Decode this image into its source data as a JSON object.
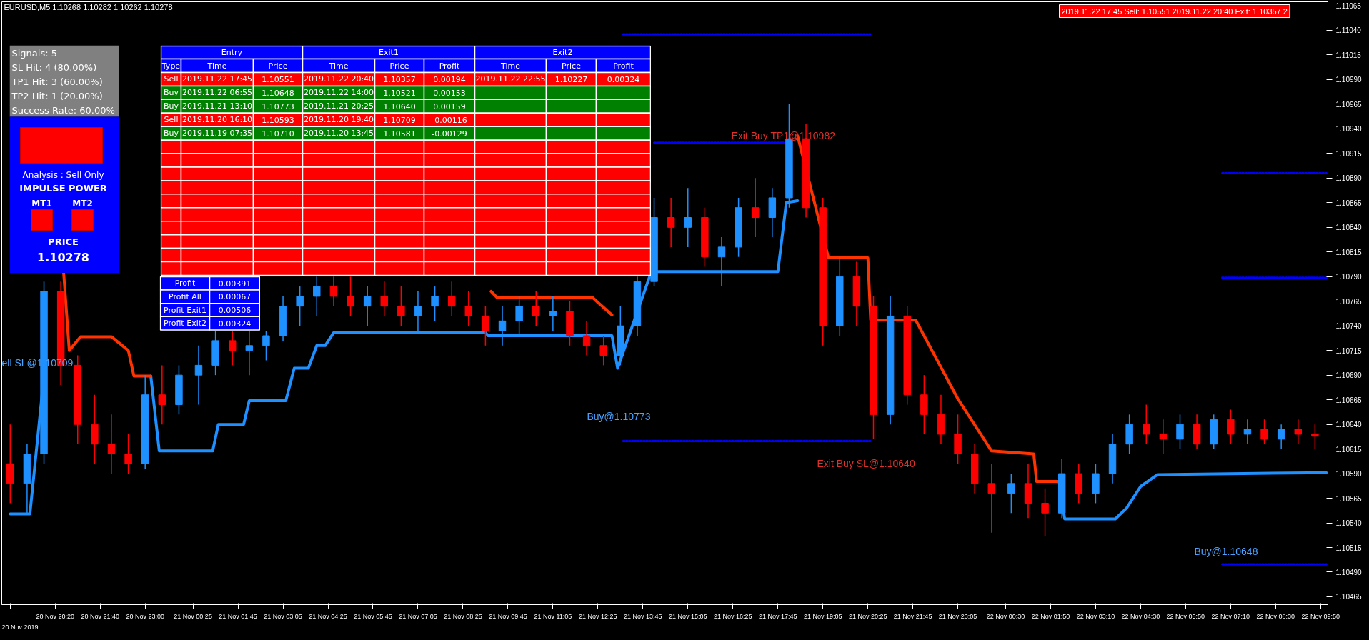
{
  "chart_data": [
    {
      "type": "candlestick",
      "title": "EURUSD,M5  1.10268 1.10282 1.10262 1.10278",
      "x": [
        "2019-11-20T19:00",
        "2019-11-20T19:30",
        "2019-11-20T20:00",
        "2019-11-20T20:30",
        "2019-11-20T21:00",
        "2019-11-20T21:30",
        "2019-11-20T22:00",
        "2019-11-20T22:30",
        "2019-11-20T23:00",
        "2019-11-20T23:30",
        "2019-11-21T00:00",
        "2019-11-21T00:35",
        "2019-11-21T01:05",
        "2019-11-21T01:35",
        "2019-11-21T02:05",
        "2019-11-21T02:35",
        "2019-11-21T03:05",
        "2019-11-21T03:35",
        "2019-11-21T04:05",
        "2019-11-21T04:35",
        "2019-11-21T05:05",
        "2019-11-21T05:35",
        "2019-11-21T06:05",
        "2019-11-21T06:35",
        "2019-11-21T07:05",
        "2019-11-21T07:35",
        "2019-11-21T08:05",
        "2019-11-21T08:35",
        "2019-11-21T09:05",
        "2019-11-21T09:35",
        "2019-11-21T10:05",
        "2019-11-21T10:35",
        "2019-11-21T11:05",
        "2019-11-21T11:35",
        "2019-11-21T12:05",
        "2019-11-21T12:35",
        "2019-11-21T13:05",
        "2019-11-21T13:35",
        "2019-11-21T14:05",
        "2019-11-21T14:35",
        "2019-11-21T15:05",
        "2019-11-21T15:35",
        "2019-11-21T16:05",
        "2019-11-21T16:35",
        "2019-11-21T17:05",
        "2019-11-21T17:35",
        "2019-11-21T18:05",
        "2019-11-21T18:35",
        "2019-11-21T19:05",
        "2019-11-21T19:35",
        "2019-11-21T20:05",
        "2019-11-21T20:35",
        "2019-11-21T21:05",
        "2019-11-21T21:35",
        "2019-11-21T22:05",
        "2019-11-21T22:35",
        "2019-11-21T23:05",
        "2019-11-21T23:35",
        "2019-11-22T00:05",
        "2019-11-22T00:40",
        "2019-11-22T01:10",
        "2019-11-22T01:40",
        "2019-11-22T02:10",
        "2019-11-22T02:40",
        "2019-11-22T03:10",
        "2019-11-22T03:40",
        "2019-11-22T04:10",
        "2019-11-22T04:40",
        "2019-11-22T05:10",
        "2019-11-22T05:40",
        "2019-11-22T06:10",
        "2019-11-22T06:40",
        "2019-11-22T07:10",
        "2019-11-22T07:40",
        "2019-11-22T08:10",
        "2019-11-22T08:40",
        "2019-11-22T09:10",
        "2019-11-22T09:40"
      ],
      "colors": [
        "#ff0000",
        "#1e90ff",
        "#1e90ff",
        "#ff0000",
        "#ff0000",
        "#ff0000",
        "#ff0000",
        "#ff0000",
        "#1e90ff",
        "#ff0000",
        "#1e90ff",
        "#1e90ff",
        "#1e90ff",
        "#ff0000",
        "#1e90ff",
        "#1e90ff",
        "#1e90ff",
        "#1e90ff",
        "#1e90ff",
        "#ff0000",
        "#ff0000",
        "#1e90ff",
        "#ff0000",
        "#ff0000",
        "#1e90ff",
        "#1e90ff",
        "#ff0000",
        "#ff0000",
        "#ff0000",
        "#1e90ff",
        "#1e90ff",
        "#ff0000",
        "#1e90ff",
        "#ff0000",
        "#ff0000",
        "#ff0000",
        "#1e90ff",
        "#1e90ff",
        "#1e90ff",
        "#ff0000",
        "#1e90ff",
        "#ff0000",
        "#1e90ff",
        "#1e90ff",
        "#ff0000",
        "#1e90ff",
        "#1e90ff",
        "#ff0000",
        "#ff0000",
        "#1e90ff",
        "#ff0000",
        "#ff0000",
        "#1e90ff",
        "#ff0000",
        "#ff0000",
        "#ff0000",
        "#ff0000",
        "#ff0000",
        "#ff0000",
        "#1e90ff",
        "#ff0000",
        "#ff0000",
        "#1e90ff",
        "#ff0000",
        "#1e90ff",
        "#1e90ff",
        "#1e90ff",
        "#ff0000",
        "#ff0000",
        "#1e90ff",
        "#ff0000",
        "#1e90ff",
        "#ff0000",
        "#1e90ff",
        "#ff0000",
        "#1e90ff",
        "#ff0000",
        "#ff0000"
      ],
      "ohlc": [
        [
          1.106,
          1.1064,
          1.1056,
          1.1058
        ],
        [
          1.1058,
          1.1062,
          1.1055,
          1.1061
        ],
        [
          1.1061,
          1.10785,
          1.106,
          1.10775
        ],
        [
          1.10775,
          1.10785,
          1.1068,
          1.107
        ],
        [
          1.107,
          1.1071,
          1.1062,
          1.1064
        ],
        [
          1.1064,
          1.1067,
          1.106,
          1.1062
        ],
        [
          1.1062,
          1.1065,
          1.1059,
          1.1061
        ],
        [
          1.1061,
          1.1063,
          1.1059,
          1.106
        ],
        [
          1.106,
          1.1069,
          1.10595,
          1.1067
        ],
        [
          1.1067,
          1.107,
          1.1064,
          1.1066
        ],
        [
          1.1066,
          1.107,
          1.1065,
          1.1069
        ],
        [
          1.1069,
          1.1072,
          1.1066,
          1.107
        ],
        [
          1.107,
          1.10735,
          1.1069,
          1.10725
        ],
        [
          1.10725,
          1.10735,
          1.107,
          1.10715
        ],
        [
          1.10715,
          1.10735,
          1.1069,
          1.1072
        ],
        [
          1.1072,
          1.10735,
          1.10705,
          1.1073
        ],
        [
          1.1073,
          1.1077,
          1.10725,
          1.1076
        ],
        [
          1.1076,
          1.1078,
          1.1074,
          1.1077
        ],
        [
          1.1077,
          1.1079,
          1.1075,
          1.1078
        ],
        [
          1.1078,
          1.1079,
          1.1076,
          1.1077
        ],
        [
          1.1077,
          1.1079,
          1.1075,
          1.1076
        ],
        [
          1.1076,
          1.1078,
          1.1074,
          1.1077
        ],
        [
          1.1077,
          1.10785,
          1.1075,
          1.1076
        ],
        [
          1.1076,
          1.1078,
          1.1074,
          1.1075
        ],
        [
          1.1075,
          1.10775,
          1.10735,
          1.1076
        ],
        [
          1.1076,
          1.1078,
          1.10745,
          1.1077
        ],
        [
          1.1077,
          1.10785,
          1.1075,
          1.1076
        ],
        [
          1.1076,
          1.10775,
          1.1074,
          1.1075
        ],
        [
          1.1075,
          1.1076,
          1.1072,
          1.10735
        ],
        [
          1.10735,
          1.1076,
          1.1072,
          1.10745
        ],
        [
          1.10745,
          1.1077,
          1.1073,
          1.1076
        ],
        [
          1.1076,
          1.10775,
          1.1074,
          1.1075
        ],
        [
          1.1075,
          1.1077,
          1.10735,
          1.10755
        ],
        [
          1.10755,
          1.10765,
          1.1072,
          1.1073
        ],
        [
          1.1073,
          1.10745,
          1.1071,
          1.1072
        ],
        [
          1.1072,
          1.1073,
          1.107,
          1.1071
        ],
        [
          1.1071,
          1.1076,
          1.107,
          1.1074
        ],
        [
          1.1074,
          1.1079,
          1.1073,
          1.10785
        ],
        [
          1.10785,
          1.1087,
          1.1078,
          1.1085
        ],
        [
          1.1085,
          1.1087,
          1.1082,
          1.1084
        ],
        [
          1.1084,
          1.1088,
          1.1082,
          1.1085
        ],
        [
          1.1085,
          1.1086,
          1.108,
          1.1081
        ],
        [
          1.1081,
          1.1083,
          1.1078,
          1.1082
        ],
        [
          1.1082,
          1.1087,
          1.1081,
          1.1086
        ],
        [
          1.1086,
          1.1089,
          1.1083,
          1.1085
        ],
        [
          1.1085,
          1.1088,
          1.1083,
          1.1087
        ],
        [
          1.1087,
          1.10965,
          1.1086,
          1.1093
        ],
        [
          1.1093,
          1.10945,
          1.1085,
          1.1086
        ],
        [
          1.1086,
          1.1087,
          1.1072,
          1.1074
        ],
        [
          1.1074,
          1.1081,
          1.1073,
          1.1079
        ],
        [
          1.1079,
          1.10805,
          1.1074,
          1.1076
        ],
        [
          1.1076,
          1.1077,
          1.10625,
          1.1065
        ],
        [
          1.1065,
          1.1077,
          1.1064,
          1.1075
        ],
        [
          1.1075,
          1.1076,
          1.1066,
          1.1067
        ],
        [
          1.1067,
          1.1069,
          1.1063,
          1.1065
        ],
        [
          1.1065,
          1.1067,
          1.1062,
          1.1063
        ],
        [
          1.1063,
          1.1065,
          1.106,
          1.1061
        ],
        [
          1.1061,
          1.1062,
          1.1057,
          1.1058
        ],
        [
          1.1058,
          1.106,
          1.1053,
          1.1057
        ],
        [
          1.1057,
          1.1059,
          1.1055,
          1.1058
        ],
        [
          1.1058,
          1.106,
          1.10545,
          1.1056
        ],
        [
          1.1056,
          1.10575,
          1.10527,
          1.1055
        ],
        [
          1.1055,
          1.10605,
          1.10545,
          1.1059
        ],
        [
          1.1059,
          1.106,
          1.1056,
          1.1057
        ],
        [
          1.1057,
          1.106,
          1.1056,
          1.1059
        ],
        [
          1.1059,
          1.1063,
          1.1058,
          1.1062
        ],
        [
          1.1062,
          1.1065,
          1.1061,
          1.1064
        ],
        [
          1.1064,
          1.1066,
          1.1062,
          1.1063
        ],
        [
          1.1063,
          1.10645,
          1.1061,
          1.10625
        ],
        [
          1.10625,
          1.1065,
          1.10615,
          1.1064
        ],
        [
          1.1064,
          1.1065,
          1.10615,
          1.1062
        ],
        [
          1.1062,
          1.1065,
          1.10615,
          1.10645
        ],
        [
          1.10645,
          1.10655,
          1.1062,
          1.1063
        ],
        [
          1.1063,
          1.10645,
          1.1062,
          1.10635
        ],
        [
          1.10635,
          1.10645,
          1.1062,
          1.10625
        ],
        [
          1.10625,
          1.1064,
          1.10615,
          1.10635
        ],
        [
          1.10635,
          1.10645,
          1.1062,
          1.1063
        ],
        [
          1.1063,
          1.1064,
          1.10615,
          1.10628
        ]
      ],
      "xlim": [
        "2019-11-20T18:45",
        "2019-11-22T10:03"
      ],
      "xticks": [
        {
          "value": "2019-11-20T19:00",
          "label": null
        },
        {
          "value": "2019-11-20T20:20",
          "label": "20 Nov 20:20"
        },
        {
          "value": "2019-11-20T21:40",
          "label": "20 Nov 21:40"
        },
        {
          "value": "2019-11-20T23:00",
          "label": "20 Nov 23:00"
        },
        {
          "value": "2019-11-21T00:25",
          "label": "21 Nov 00:25"
        },
        {
          "value": "2019-11-21T01:45",
          "label": "21 Nov 01:45"
        },
        {
          "value": "2019-11-21T03:05",
          "label": "21 Nov 03:05"
        },
        {
          "value": "2019-11-21T04:25",
          "label": "21 Nov 04:25"
        },
        {
          "value": "2019-11-21T05:45",
          "label": "21 Nov 05:45"
        },
        {
          "value": "2019-11-21T07:05",
          "label": "21 Nov 07:05"
        },
        {
          "value": "2019-11-21T08:25",
          "label": "21 Nov 08:25"
        },
        {
          "value": "2019-11-21T09:45",
          "label": "21 Nov 09:45"
        },
        {
          "value": "2019-11-21T11:05",
          "label": "21 Nov 11:05"
        },
        {
          "value": "2019-11-21T12:25",
          "label": "21 Nov 12:25"
        },
        {
          "value": "2019-11-21T13:45",
          "label": "21 Nov 13:45"
        },
        {
          "value": "2019-11-21T15:05",
          "label": "21 Nov 15:05"
        },
        {
          "value": "2019-11-21T16:25",
          "label": "21 Nov 16:25"
        },
        {
          "value": "2019-11-21T17:45",
          "label": "21 Nov 17:45"
        },
        {
          "value": "2019-11-21T19:05",
          "label": "21 Nov 19:05"
        },
        {
          "value": "2019-11-21T20:25",
          "label": "21 Nov 20:25"
        },
        {
          "value": "2019-11-21T21:45",
          "label": "21 Nov 21:45"
        },
        {
          "value": "2019-11-21T23:05",
          "label": "21 Nov 23:05"
        },
        {
          "value": "2019-11-22T00:30",
          "label": "22 Nov 00:30"
        },
        {
          "value": "2019-11-22T01:50",
          "label": "22 Nov 01:50"
        },
        {
          "value": "2019-11-22T03:10",
          "label": "22 Nov 03:10"
        },
        {
          "value": "2019-11-22T04:30",
          "label": "22 Nov 04:30"
        },
        {
          "value": "2019-11-22T05:50",
          "label": "22 Nov 05:50"
        },
        {
          "value": "2019-11-22T07:10",
          "label": "22 Nov 07:10"
        },
        {
          "value": "2019-11-22T08:30",
          "label": "22 Nov 08:30"
        },
        {
          "value": "2019-11-22T09:50",
          "label": "22 Nov 09:50"
        }
      ],
      "ylim": [
        1.10457,
        1.11069
      ],
      "yticks": [
        {
          "value": 1.10465,
          "label": "1.10465"
        },
        {
          "value": 1.1049,
          "label": "1.10490"
        },
        {
          "value": 1.10515,
          "label": "1.10515"
        },
        {
          "value": 1.1054,
          "label": "1.10540"
        },
        {
          "value": 1.10565,
          "label": "1.10565"
        },
        {
          "value": 1.1059,
          "label": "1.10590"
        },
        {
          "value": 1.10615,
          "label": "1.10615"
        },
        {
          "value": 1.1064,
          "label": "1.10640"
        },
        {
          "value": 1.10665,
          "label": "1.10665"
        },
        {
          "value": 1.1069,
          "label": "1.10690"
        },
        {
          "value": 1.10715,
          "label": "1.10715"
        },
        {
          "value": 1.1074,
          "label": "1.10740"
        },
        {
          "value": 1.10765,
          "label": "1.10765"
        },
        {
          "value": 1.1079,
          "label": "1.10790"
        },
        {
          "value": 1.10815,
          "label": "1.10815"
        },
        {
          "value": 1.1084,
          "label": "1.10840"
        },
        {
          "value": 1.10865,
          "label": "1.10865"
        },
        {
          "value": 1.1089,
          "label": "1.10890"
        },
        {
          "value": 1.10915,
          "label": "1.10915"
        },
        {
          "value": 1.1094,
          "label": "1.10940"
        },
        {
          "value": 1.10965,
          "label": "1.10965"
        },
        {
          "value": 1.1099,
          "label": "1.10990"
        },
        {
          "value": 1.11015,
          "label": "1.11015"
        },
        {
          "value": 1.1104,
          "label": "1.11040"
        },
        {
          "value": 1.11065,
          "label": "1.11065"
        }
      ],
      "series": [
        {
          "type": "line",
          "color": "#1e90ff",
          "x": [
            "2019-11-20T19:00",
            "2019-11-20T19:35",
            "2019-11-20T20:00",
            "2019-11-20T20:05",
            "2019-11-20T23:10",
            "2019-11-20T23:25",
            "2019-11-21T01:00",
            "2019-11-21T01:10",
            "2019-11-21T01:55",
            "2019-11-21T02:05",
            "2019-11-21T03:10",
            "2019-11-21T03:25",
            "2019-11-21T03:50",
            "2019-11-21T04:05",
            "2019-11-21T04:20",
            "2019-11-21T04:35",
            "2019-11-21T09:05",
            "2019-11-21T09:10",
            "2019-11-21T12:50",
            "2019-11-21T13:00",
            "2019-11-21T14:00",
            "2019-11-21T17:45",
            "2019-11-21T18:00",
            "2019-11-21T18:20",
            "2019-11-21T18:25",
            "2019-11-22T02:05",
            "2019-11-22T02:15",
            "2019-11-22T03:45",
            "2019-11-22T04:05",
            "2019-11-22T04:30",
            "2019-11-22T05:00",
            "2019-11-22T10:00"
          ],
          "values": [
            1.10549,
            1.10549,
            1.10689,
            null,
            1.10689,
            1.10613,
            1.10613,
            1.1064,
            1.1064,
            1.10664,
            1.10664,
            1.10697,
            1.10697,
            1.1072,
            1.1072,
            1.10733,
            1.10733,
            1.1073,
            1.1073,
            1.10697,
            1.10795,
            1.10795,
            1.10865,
            1.10867,
            null,
            1.10582,
            1.10544,
            1.10544,
            1.10555,
            1.10577,
            1.10589,
            1.10591
          ]
        },
        {
          "type": "line",
          "color": "#ff3300",
          "x": [
            "2019-11-20T20:35",
            "2019-11-20T20:45",
            "2019-11-20T21:05",
            "2019-11-20T22:00",
            "2019-11-20T22:30",
            "2019-11-20T22:40",
            "2019-11-20T23:10",
            "2019-11-21T00:00",
            "2019-11-21T09:15",
            "2019-11-21T09:25",
            "2019-11-21T12:15",
            "2019-11-21T12:50",
            "2019-11-21T13:25",
            "2019-11-21T18:20",
            "2019-11-21T19:15",
            "2019-11-21T20:25",
            "2019-11-21T20:30",
            "2019-11-21T21:50",
            "2019-11-21T23:05",
            "2019-11-22T00:05",
            "2019-11-22T01:20",
            "2019-11-22T01:25",
            "2019-11-22T02:05"
          ],
          "values": [
            1.10794,
            1.10715,
            1.10729,
            1.10729,
            1.10715,
            1.10689,
            1.10689,
            null,
            1.10775,
            1.10769,
            1.10769,
            1.10751,
            null,
            1.10933,
            1.10809,
            1.10809,
            1.10746,
            1.10746,
            1.10666,
            1.10613,
            1.1061,
            1.10582,
            1.10582
          ]
        },
        {
          "type": "line",
          "line_style": "dotted",
          "color": "#0000ff",
          "x": [
            "2019-11-21T13:10",
            "2019-11-21T20:30"
          ],
          "values": [
            1.11036,
            1.11036
          ]
        },
        {
          "type": "line",
          "line_style": "dotted",
          "color": "#0000ff",
          "x": [
            "2019-11-21T14:05",
            "2019-11-21T17:55"
          ],
          "values": [
            1.10926,
            1.10926
          ]
        },
        {
          "type": "line",
          "line_style": "dotted",
          "color": "#0000ff",
          "x": [
            "2019-11-21T13:10",
            "2019-11-21T20:30"
          ],
          "values": [
            1.10623,
            1.10623
          ]
        },
        {
          "type": "line",
          "line_style": "dotted",
          "color": "#0000ff",
          "x": [
            "2019-11-22T06:55",
            "2019-11-22T10:03"
          ],
          "values": [
            1.10895,
            1.10895
          ]
        },
        {
          "type": "line",
          "line_style": "dotted",
          "color": "#0000ff",
          "x": [
            "2019-11-22T06:55",
            "2019-11-22T10:03"
          ],
          "values": [
            1.10789,
            1.10789
          ]
        },
        {
          "type": "line",
          "line_style": "dotted",
          "color": "#0000ff",
          "x": [
            "2019-11-22T06:55",
            "2019-11-22T10:03"
          ],
          "values": [
            1.10498,
            1.10498
          ]
        }
      ],
      "annotations": [
        "2019.11.22 17:45 Sell: 1.10551 2019.11.22 20:40 Exit: 1.10357 2",
        "ell SL@1.10709",
        "Exit Buy TP1@1.10982",
        "Buy@1.10773",
        "Exit Buy SL@1.10640",
        "Buy@1.10648",
        "20 Nov 2019"
      ]
    },
    {
      "type": "other",
      "colors": [
        "#808080",
        "#0000ff",
        "#ff0000"
      ],
      "annotations": [
        "Signals: 5",
        "SL Hit: 4 (80.00%)",
        "TP1 Hit: 3 (60.00%)",
        "TP2 Hit: 1 (20.00%)",
        "Success Rate: 60.00%",
        "Analysis : Sell Only",
        "IMPULSE POWER",
        "MT1",
        "MT2",
        "PRICE",
        "1.10278"
      ]
    },
    {
      "type": "other",
      "colors": [
        "#0000ff",
        "#ff0000",
        "#008000",
        "#008000",
        "#ff0000",
        "#008000",
        "#ff0000",
        "#ff0000",
        "#ff0000",
        "#ff0000",
        "#ff0000",
        "#ff0000",
        "#ff0000",
        "#ff0000",
        "#ff0000",
        "#ff0000"
      ],
      "annotations": [
        "Entry",
        "Exit1",
        "Exit2"
      ],
      "categories": [
        "Type",
        "Time",
        "Price",
        "Time",
        "Price",
        "Profit",
        "Time",
        "Price",
        "Profit"
      ],
      "cell_labels": [
        [
          "Sell",
          "2019.11.22 17:45",
          "1.10551",
          "2019.11.22 20:40",
          "1.10357",
          "0.00194",
          "2019.11.22 22:55",
          "1.10227",
          "0.00324"
        ],
        [
          "Buy",
          "2019.11.22 06:55",
          "1.10648",
          "2019.11.22 14:00",
          "1.10521",
          "0.00153",
          null,
          null,
          null
        ],
        [
          "Buy",
          "2019.11.21 13:10",
          "1.10773",
          "2019.11.21 20:25",
          "1.10640",
          "0.00159",
          null,
          null,
          null
        ],
        [
          "Sell",
          "2019.11.20 16:10",
          "1.10593",
          "2019.11.20 19:40",
          "1.10709",
          "-0.00116",
          null,
          null,
          null
        ],
        [
          "Buy",
          "2019.11.19 07:35",
          "1.10710",
          "2019.11.20 13:45",
          "1.10581",
          "-0.00129",
          null,
          null,
          null
        ],
        [
          null,
          null,
          null,
          null,
          null,
          null,
          null,
          null,
          null
        ],
        [
          null,
          null,
          null,
          null,
          null,
          null,
          null,
          null,
          null
        ],
        [
          null,
          null,
          null,
          null,
          null,
          null,
          null,
          null,
          null
        ],
        [
          null,
          null,
          null,
          null,
          null,
          null,
          null,
          null,
          null
        ],
        [
          null,
          null,
          null,
          null,
          null,
          null,
          null,
          null,
          null
        ],
        [
          null,
          null,
          null,
          null,
          null,
          null,
          null,
          null,
          null
        ],
        [
          null,
          null,
          null,
          null,
          null,
          null,
          null,
          null,
          null
        ],
        [
          null,
          null,
          null,
          null,
          null,
          null,
          null,
          null,
          null
        ],
        [
          null,
          null,
          null,
          null,
          null,
          null,
          null,
          null,
          null
        ],
        [
          null,
          null,
          null,
          null,
          null,
          null,
          null,
          null,
          null
        ]
      ]
    },
    {
      "type": "other",
      "colors": [
        "#0000ff"
      ],
      "cell_labels": [
        [
          "Profit",
          "0.00391"
        ],
        [
          "Profit All",
          "0.00067"
        ],
        [
          "Profit Exit1",
          "0.00506"
        ],
        [
          "Profit Exit2",
          "0.00324"
        ]
      ]
    }
  ]
}
